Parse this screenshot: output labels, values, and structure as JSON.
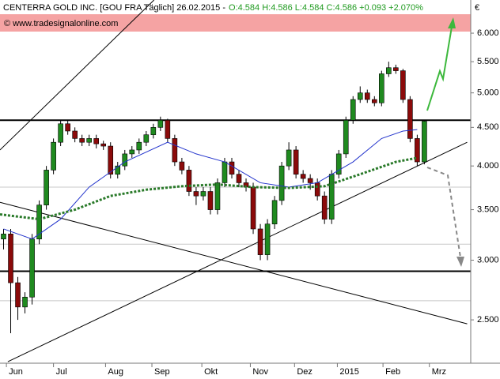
{
  "chart_data": {
    "type": "candlestick",
    "title": "CENTERRA GOLD INC. [GOU FRA  Täglich] 26.02.2015 -",
    "quote": "O:4.584 H:4.586 L:4.584 C:4.586 +0.093 +2.070%",
    "watermark": "© www.tradesignalonline.com",
    "currency": "€",
    "log_y": true,
    "xlim": [
      -0.5,
      65.5
    ],
    "ylim": [
      2.19,
      6.64
    ],
    "yticks": [
      {
        "value": 2.5,
        "label": "2.500"
      },
      {
        "value": 3,
        "label": "3.000"
      },
      {
        "value": 3.5,
        "label": "3.500"
      },
      {
        "value": 4,
        "label": "4.000"
      },
      {
        "value": 4.5,
        "label": "4.500"
      },
      {
        "value": 5,
        "label": "5.000"
      },
      {
        "value": 5.5,
        "label": "5.500"
      },
      {
        "value": 6,
        "label": "6.000"
      }
    ],
    "xticks": [
      {
        "value": 0.4,
        "label": "Jun"
      },
      {
        "value": 7.0,
        "label": "Jul"
      },
      {
        "value": 14.3,
        "label": "Aug"
      },
      {
        "value": 20.8,
        "label": "Sep"
      },
      {
        "value": 27.8,
        "label": "Okt"
      },
      {
        "value": 34.6,
        "label": "Nov"
      },
      {
        "value": 40.8,
        "label": "Dez"
      },
      {
        "value": 46.8,
        "label": "2015"
      },
      {
        "value": 53.2,
        "label": "Feb"
      },
      {
        "value": 59.7,
        "label": "Mrz"
      }
    ],
    "up_color": "#1f8a1f",
    "down_color": "#8b0a0a",
    "open": [
      3.2,
      3.25,
      2.8,
      2.6,
      2.68,
      3.2,
      3.55,
      3.95,
      4.3,
      4.55,
      4.45,
      4.35,
      4.3,
      4.35,
      4.28,
      4.25,
      3.9,
      4.0,
      4.15,
      4.2,
      4.3,
      4.4,
      4.5,
      4.6,
      4.35,
      4.05,
      3.95,
      3.7,
      3.65,
      3.7,
      3.5,
      3.8,
      4.05,
      3.9,
      3.8,
      3.75,
      3.3,
      3.05,
      3.35,
      3.6,
      4.0,
      4.2,
      3.9,
      3.85,
      3.8,
      3.65,
      3.4,
      3.9,
      4.15,
      4.6,
      4.9,
      5.0,
      4.9,
      4.85,
      5.3,
      5.4,
      5.35,
      4.9,
      4.35,
      4.05
    ],
    "high": [
      3.3,
      3.3,
      2.85,
      2.72,
      3.25,
      3.6,
      4.0,
      4.35,
      4.6,
      4.6,
      4.5,
      4.4,
      4.4,
      4.4,
      4.32,
      4.3,
      4.05,
      4.2,
      4.25,
      4.35,
      4.45,
      4.55,
      4.65,
      4.62,
      4.4,
      4.1,
      4.0,
      3.75,
      3.75,
      3.75,
      3.85,
      4.1,
      4.1,
      3.95,
      3.85,
      3.8,
      3.35,
      3.4,
      3.65,
      4.05,
      4.3,
      4.25,
      3.95,
      3.9,
      3.85,
      3.7,
      3.95,
      4.2,
      4.65,
      4.95,
      5.1,
      5.05,
      4.95,
      5.35,
      5.5,
      5.45,
      5.38,
      4.95,
      4.4,
      4.6
    ],
    "low": [
      3.1,
      2.4,
      2.5,
      2.55,
      2.62,
      3.15,
      3.5,
      3.9,
      4.25,
      4.4,
      4.3,
      4.25,
      4.25,
      4.22,
      4.2,
      3.85,
      3.85,
      3.95,
      4.1,
      4.15,
      4.25,
      4.35,
      4.45,
      4.3,
      4.0,
      3.9,
      3.65,
      3.55,
      3.6,
      3.45,
      3.45,
      3.75,
      3.85,
      3.75,
      3.7,
      3.25,
      3.0,
      3.0,
      3.3,
      3.55,
      3.95,
      3.85,
      3.8,
      3.72,
      3.6,
      3.35,
      3.35,
      3.85,
      4.1,
      4.55,
      4.85,
      4.85,
      4.8,
      4.8,
      5.25,
      5.3,
      4.85,
      4.3,
      4.0,
      4.02
    ],
    "close": [
      3.25,
      2.8,
      2.6,
      2.68,
      3.2,
      3.55,
      3.95,
      4.3,
      4.55,
      4.45,
      4.35,
      4.3,
      4.35,
      4.28,
      4.25,
      3.9,
      4.0,
      4.15,
      4.2,
      4.3,
      4.4,
      4.5,
      4.6,
      4.35,
      4.05,
      3.95,
      3.7,
      3.65,
      3.7,
      3.5,
      3.8,
      4.05,
      3.9,
      3.8,
      3.75,
      3.3,
      3.05,
      3.35,
      3.6,
      4.0,
      4.2,
      3.9,
      3.85,
      3.8,
      3.65,
      3.4,
      3.9,
      4.15,
      4.6,
      4.9,
      5.0,
      4.9,
      4.85,
      5.3,
      5.4,
      5.35,
      4.9,
      4.35,
      4.05,
      4.586
    ],
    "series": [
      {
        "color": "#2233cc",
        "style": "solid",
        "x": [
          0,
          4,
          8,
          12,
          17,
          23,
          27,
          31,
          36,
          40,
          44,
          49,
          53,
          56,
          58
        ],
        "values": [
          3.3,
          3.2,
          3.4,
          3.75,
          4.05,
          4.3,
          4.15,
          4.05,
          3.8,
          3.75,
          3.8,
          4.05,
          4.35,
          4.45,
          4.47
        ]
      },
      {
        "color": "#2a7a2a",
        "style": "dotted",
        "x": [
          -0.5,
          5,
          10,
          15,
          20,
          25,
          30,
          35,
          40,
          45,
          50,
          55,
          58
        ],
        "values": [
          3.45,
          3.4,
          3.5,
          3.65,
          3.72,
          3.76,
          3.78,
          3.75,
          3.74,
          3.76,
          3.9,
          4.05,
          4.1
        ]
      }
    ],
    "levels": [
      4.6,
      2.9
    ],
    "minor_levels": [
      3.75,
      3.15,
      2.65
    ],
    "trendlines": [
      {
        "x": [
          -0.5,
          21.1
        ],
        "values": [
          4.2,
          6.64
        ]
      },
      {
        "x": [
          -0.5,
          65.0
        ],
        "values": [
          3.58,
          2.47
        ]
      },
      {
        "x": [
          0.6,
          65.0
        ],
        "values": [
          2.2,
          4.3
        ]
      }
    ]
  }
}
